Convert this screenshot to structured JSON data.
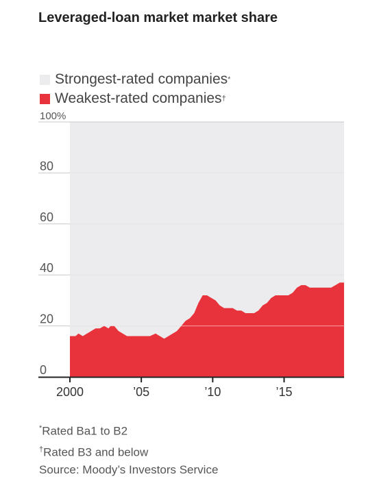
{
  "chart_data": {
    "type": "area",
    "stacked": true,
    "title": "Leveraged-loan market market share",
    "xlabel": "",
    "ylabel": "",
    "xlim": [
      2000,
      2019.2
    ],
    "ylim": [
      0,
      100
    ],
    "yticks": [
      0,
      20,
      40,
      60,
      80,
      100
    ],
    "ytick_labels": [
      "0",
      "20",
      "40",
      "60",
      "80",
      "100%"
    ],
    "xticks": [
      2000,
      2005,
      2010,
      2015
    ],
    "xtick_labels": [
      "2000",
      "’05",
      "’10",
      "’15"
    ],
    "grid": true,
    "legend_position": "top-left",
    "series": [
      {
        "name": "Strongest-rated companies",
        "marker": "*",
        "color": "#ececee",
        "note": "fills the remainder to 100%"
      },
      {
        "name": "Weakest-rated companies",
        "marker": "†",
        "color": "#e8333c",
        "x": [
          2000,
          2000.4,
          2000.6,
          2000.9,
          2001.2,
          2001.5,
          2001.8,
          2002.1,
          2002.4,
          2002.7,
          2002.85,
          2003.1,
          2003.4,
          2003.7,
          2004.0,
          2004.4,
          2004.8,
          2005.2,
          2005.6,
          2006.0,
          2006.3,
          2006.6,
          2006.9,
          2007.2,
          2007.5,
          2007.8,
          2008.1,
          2008.4,
          2008.7,
          2009.0,
          2009.3,
          2009.6,
          2009.9,
          2010.2,
          2010.5,
          2010.8,
          2011.1,
          2011.4,
          2011.7,
          2012.0,
          2012.3,
          2012.6,
          2012.9,
          2013.2,
          2013.5,
          2013.8,
          2014.1,
          2014.4,
          2014.7,
          2015.0,
          2015.3,
          2015.6,
          2015.9,
          2016.2,
          2016.5,
          2016.8,
          2017.1,
          2017.4,
          2017.7,
          2018.0,
          2018.3,
          2018.6,
          2018.9,
          2019.2
        ],
        "values": [
          16,
          16,
          17,
          16,
          17,
          18,
          19,
          19,
          20,
          19,
          20,
          20,
          18,
          17,
          16,
          16,
          16,
          16,
          16,
          17,
          16,
          15,
          16,
          17,
          18,
          20,
          22,
          23,
          25,
          29,
          32,
          32,
          31,
          30,
          28,
          27,
          27,
          27,
          26,
          26,
          25,
          25,
          25,
          26,
          28,
          29,
          31,
          32,
          32,
          32,
          32,
          33,
          35,
          36,
          36,
          35,
          35,
          35,
          35,
          35,
          35,
          36,
          37,
          37
        ]
      }
    ]
  },
  "legend": {
    "items": [
      {
        "label": "Strongest-rated companies",
        "marker": "*",
        "color": "#ececee"
      },
      {
        "label": "Weakest-rated companies",
        "marker": "†",
        "color": "#e8333c"
      }
    ]
  },
  "notes": {
    "rated_strong": {
      "marker": "*",
      "text": "Rated Ba1 to B2"
    },
    "rated_weak": {
      "marker": "†",
      "text": "Rated B3 and below"
    },
    "source": "Source: Moody’s Investors Service"
  }
}
